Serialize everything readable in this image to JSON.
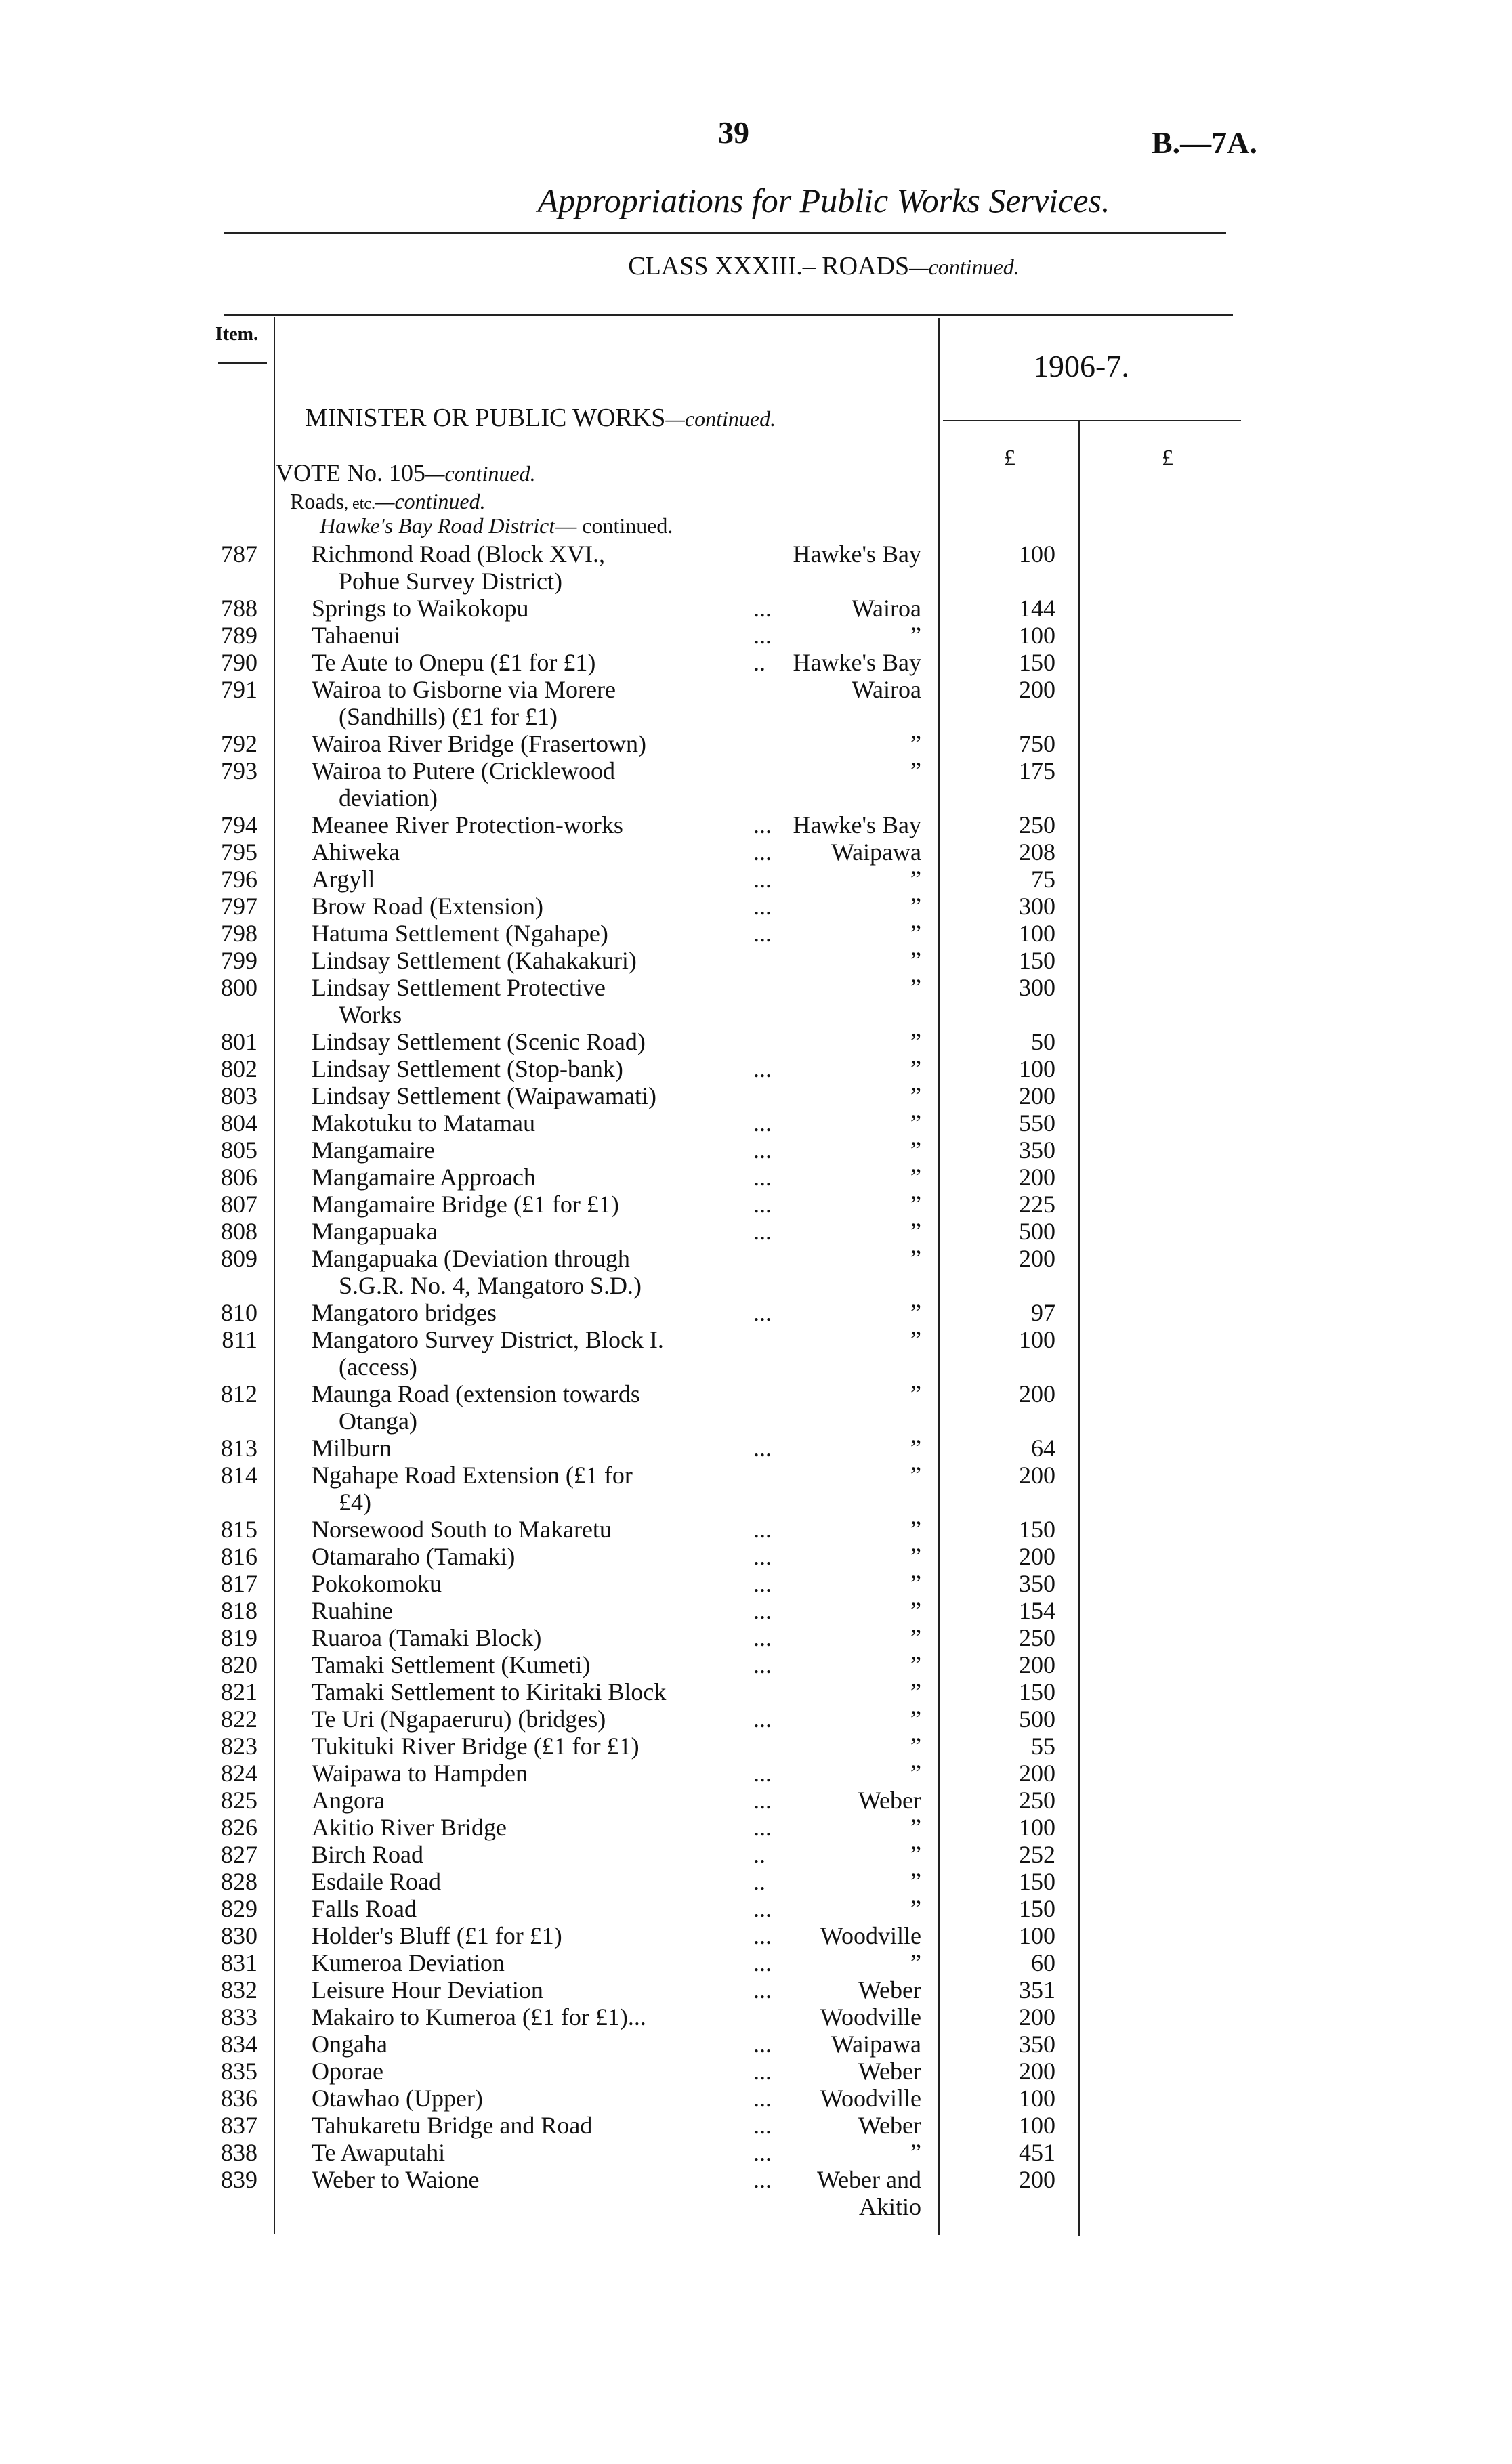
{
  "header": {
    "page_number": "39",
    "doc_ref": "B.—7A.",
    "title": "Appropriations for Public Works Services.",
    "class_heading": "CLASS XXXIII.– ROADS",
    "class_suffix": "—continued."
  },
  "columns": {
    "item": "Item.",
    "year": "1906-7.",
    "pound1": "£",
    "pound2": "£"
  },
  "sections": {
    "minister": "MINISTER OR PUBLIC WORKS",
    "minister_suffix": "—continued.",
    "vote": "VOTE No. 105",
    "vote_suffix": "—continued.",
    "roads": "Roads",
    "roads_etc": ", etc.",
    "roads_suffix": "—continued.",
    "district": "Hawke's Bay Road District",
    "district_suffix": "— continued."
  },
  "items": [
    {
      "num": "787",
      "desc": [
        "Richmond Road (Block XVI., ",
        "Pohue Survey District)"
      ],
      "dist": "Hawke's Bay",
      "amt": "100",
      "dots": ""
    },
    {
      "num": "788",
      "desc": [
        "Springs to Waikokopu"
      ],
      "dist": "Wairoa",
      "amt": "144",
      "dots": "..."
    },
    {
      "num": "789",
      "desc": [
        "Tahaenui"
      ],
      "dist": "”",
      "amt": "100",
      "dots": "..."
    },
    {
      "num": "790",
      "desc": [
        "Te Aute to Onepu (£1 for £1)"
      ],
      "dist": "Hawke's Bay",
      "amt": "150",
      "dots": ".."
    },
    {
      "num": "791",
      "desc": [
        "Wairoa to Gisborne via Morere",
        "(Sandhills) (£1 for £1)"
      ],
      "dist": "Wairoa",
      "amt": "200",
      "dots": ""
    },
    {
      "num": "792",
      "desc": [
        "Wairoa River Bridge (Frasertown)"
      ],
      "dist": "”",
      "amt": "750",
      "dots": ""
    },
    {
      "num": "793",
      "desc": [
        "Wairoa to Putere (Cricklewood",
        "deviation)"
      ],
      "dist": "”",
      "amt": "175",
      "dots": ""
    },
    {
      "num": "794",
      "desc": [
        "Meanee River Protection-works"
      ],
      "dist": "Hawke's Bay",
      "amt": "250",
      "dots": "..."
    },
    {
      "num": "795",
      "desc": [
        "Ahiweka"
      ],
      "dist": "Waipawa",
      "amt": "208",
      "dots": "..."
    },
    {
      "num": "796",
      "desc": [
        "Argyll"
      ],
      "dist": "”",
      "amt": "75",
      "dots": "..."
    },
    {
      "num": "797",
      "desc": [
        "Brow Road (Extension)"
      ],
      "dist": "”",
      "amt": "300",
      "dots": "..."
    },
    {
      "num": "798",
      "desc": [
        "Hatuma Settlement (Ngahape)"
      ],
      "dist": "”",
      "amt": "100",
      "dots": "..."
    },
    {
      "num": "799",
      "desc": [
        "Lindsay Settlement (Kahakakuri)"
      ],
      "dist": "”",
      "amt": "150",
      "dots": ""
    },
    {
      "num": "800",
      "desc": [
        "Lindsay Settlement Protective",
        "Works"
      ],
      "dist": "”",
      "amt": "300",
      "dots": ""
    },
    {
      "num": "801",
      "desc": [
        "Lindsay Settlement (Scenic Road)"
      ],
      "dist": "”",
      "amt": "50",
      "dots": ""
    },
    {
      "num": "802",
      "desc": [
        "Lindsay Settlement (Stop-bank)"
      ],
      "dist": "”",
      "amt": "100",
      "dots": "..."
    },
    {
      "num": "803",
      "desc": [
        "Lindsay Settlement (Waipawamati)"
      ],
      "dist": "”",
      "amt": "200",
      "dots": ""
    },
    {
      "num": "804",
      "desc": [
        "Makotuku to Matamau"
      ],
      "dist": "”",
      "amt": "550",
      "dots": "..."
    },
    {
      "num": "805",
      "desc": [
        "Mangamaire"
      ],
      "dist": "”",
      "amt": "350",
      "dots": "..."
    },
    {
      "num": "806",
      "desc": [
        "Mangamaire Approach"
      ],
      "dist": "”",
      "amt": "200",
      "dots": "..."
    },
    {
      "num": "807",
      "desc": [
        "Mangamaire Bridge (£1 for £1)"
      ],
      "dist": "”",
      "amt": "225",
      "dots": "..."
    },
    {
      "num": "808",
      "desc": [
        "Mangapuaka"
      ],
      "dist": "”",
      "amt": "500",
      "dots": "..."
    },
    {
      "num": "809",
      "desc": [
        "Mangapuaka (Deviation through",
        "S.G.R. No. 4, Mangatoro S.D.)"
      ],
      "dist": "”",
      "amt": "200",
      "dots": ""
    },
    {
      "num": "810",
      "desc": [
        "Mangatoro bridges"
      ],
      "dist": "”",
      "amt": "97",
      "dots": "..."
    },
    {
      "num": "811",
      "desc": [
        "Mangatoro Survey District, Block I.",
        "(access)"
      ],
      "dist": "”",
      "amt": "100",
      "dots": ""
    },
    {
      "num": "812",
      "desc": [
        "Maunga Road (extension towards",
        "Otanga)"
      ],
      "dist": "”",
      "amt": "200",
      "dots": ""
    },
    {
      "num": "813",
      "desc": [
        "Milburn"
      ],
      "dist": "”",
      "amt": "64",
      "dots": "..."
    },
    {
      "num": "814",
      "desc": [
        "Ngahape Road Extension (£1 for",
        "£4)"
      ],
      "dist": "”",
      "amt": "200",
      "dots": ""
    },
    {
      "num": "815",
      "desc": [
        "Norsewood South to Makaretu"
      ],
      "dist": "”",
      "amt": "150",
      "dots": "..."
    },
    {
      "num": "816",
      "desc": [
        "Otamaraho (Tamaki)"
      ],
      "dist": "”",
      "amt": "200",
      "dots": "..."
    },
    {
      "num": "817",
      "desc": [
        "Pokokomoku"
      ],
      "dist": "”",
      "amt": "350",
      "dots": "..."
    },
    {
      "num": "818",
      "desc": [
        "Ruahine"
      ],
      "dist": "”",
      "amt": "154",
      "dots": "..."
    },
    {
      "num": "819",
      "desc": [
        "Ruaroa (Tamaki Block)"
      ],
      "dist": "”",
      "amt": "250",
      "dots": "..."
    },
    {
      "num": "820",
      "desc": [
        "Tamaki Settlement (Kumeti)"
      ],
      "dist": "”",
      "amt": "200",
      "dots": "..."
    },
    {
      "num": "821",
      "desc": [
        "Tamaki Settlement to Kiritaki Block"
      ],
      "dist": "”",
      "amt": "150",
      "dots": ""
    },
    {
      "num": "822",
      "desc": [
        "Te Uri (Ngapaeruru) (bridges)"
      ],
      "dist": "”",
      "amt": "500",
      "dots": "..."
    },
    {
      "num": "823",
      "desc": [
        "Tukituki River Bridge (£1 for £1)"
      ],
      "dist": "”",
      "amt": "55",
      "dots": ""
    },
    {
      "num": "824",
      "desc": [
        "Waipawa to Hampden"
      ],
      "dist": "”",
      "amt": "200",
      "dots": "..."
    },
    {
      "num": "825",
      "desc": [
        "Angora"
      ],
      "dist": "Weber",
      "amt": "250",
      "dots": "..."
    },
    {
      "num": "826",
      "desc": [
        "Akitio River Bridge"
      ],
      "dist": "”",
      "amt": "100",
      "dots": "..."
    },
    {
      "num": "827",
      "desc": [
        "Birch Road"
      ],
      "dist": "”",
      "amt": "252",
      "dots": ".."
    },
    {
      "num": "828",
      "desc": [
        "Esdaile Road"
      ],
      "dist": "”",
      "amt": "150",
      "dots": ".."
    },
    {
      "num": "829",
      "desc": [
        "Falls Road"
      ],
      "dist": "”",
      "amt": "150",
      "dots": "..."
    },
    {
      "num": "830",
      "desc": [
        "Holder's Bluff (£1 for £1)"
      ],
      "dist": "Woodville",
      "amt": "100",
      "dots": "..."
    },
    {
      "num": "831",
      "desc": [
        "Kumeroa Deviation"
      ],
      "dist": "”",
      "amt": "60",
      "dots": "..."
    },
    {
      "num": "832",
      "desc": [
        "Leisure Hour Deviation"
      ],
      "dist": "Weber",
      "amt": "351",
      "dots": "..."
    },
    {
      "num": "833",
      "desc": [
        "Makairo to Kumeroa (£1 for £1)..."
      ],
      "dist": "Woodville",
      "amt": "200",
      "dots": ""
    },
    {
      "num": "834",
      "desc": [
        "Ongaha"
      ],
      "dist": "Waipawa",
      "amt": "350",
      "dots": "..."
    },
    {
      "num": "835",
      "desc": [
        "Oporae"
      ],
      "dist": "Weber",
      "amt": "200",
      "dots": "..."
    },
    {
      "num": "836",
      "desc": [
        "Otawhao (Upper)"
      ],
      "dist": "Woodville",
      "amt": "100",
      "dots": "..."
    },
    {
      "num": "837",
      "desc": [
        "Tahukaretu Bridge and Road"
      ],
      "dist": "Weber",
      "amt": "100",
      "dots": "..."
    },
    {
      "num": "838",
      "desc": [
        "Te Awaputahi"
      ],
      "dist": "”",
      "amt": "451",
      "dots": "..."
    },
    {
      "num": "839",
      "desc": [
        "Weber to Waione"
      ],
      "dist": "Weber and Akitio",
      "amt": "200",
      "dots": "..."
    }
  ]
}
